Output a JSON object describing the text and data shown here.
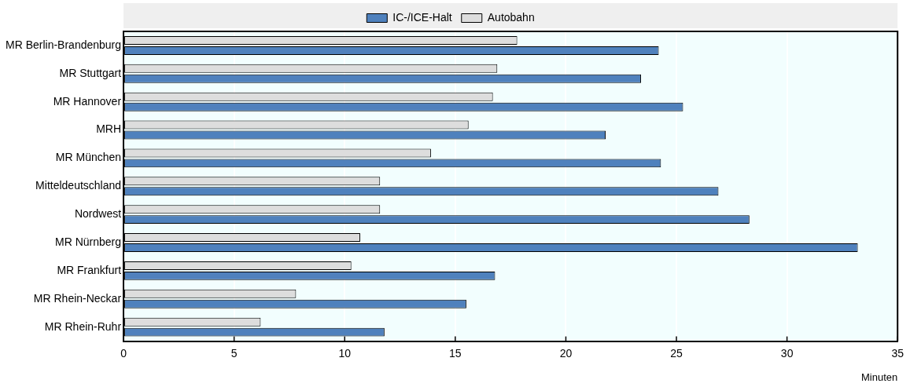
{
  "chart_data": {
    "type": "bar",
    "orientation": "horizontal",
    "xlabel": "Minuten",
    "categories": [
      "MR Berlin-Brandenburg",
      "MR Stuttgart",
      "MR Hannover",
      "MRH",
      "MR München",
      "Mitteldeutschland",
      "Nordwest",
      "MR Nürnberg",
      "MR Frankfurt",
      "MR Rhein-Neckar",
      "MR Rhein-Ruhr"
    ],
    "series": [
      {
        "name": "IC-/ICE-Halt",
        "color": "#4f81bd",
        "values": [
          24.2,
          23.4,
          25.3,
          21.8,
          24.3,
          26.9,
          28.3,
          33.2,
          16.8,
          15.5,
          11.8
        ]
      },
      {
        "name": "Autobahn",
        "color": "#dddddd",
        "values": [
          17.8,
          16.9,
          16.7,
          15.6,
          13.9,
          11.6,
          11.6,
          10.7,
          10.3,
          7.8,
          6.2
        ]
      }
    ],
    "xlim": [
      0,
      35
    ],
    "xticks": [
      0,
      5,
      10,
      15,
      20,
      25,
      30,
      35
    ],
    "grid": "x",
    "legend": "top"
  }
}
